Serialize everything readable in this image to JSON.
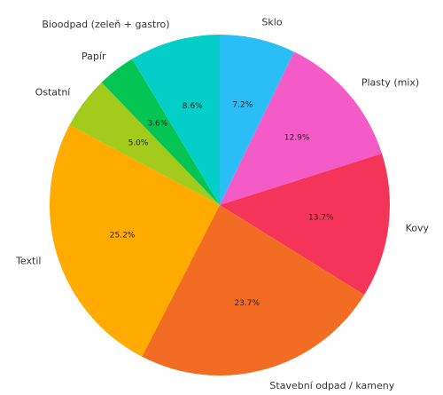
{
  "chart_data": {
    "type": "pie",
    "start_angle_deg": 90,
    "direction": "clockwise",
    "slices": [
      {
        "label": "Sklo",
        "value": 7.2,
        "pct_label": "7.2%",
        "color": "#2BBDF5"
      },
      {
        "label": "Plasty (mix)",
        "value": 12.9,
        "pct_label": "12.9%",
        "color": "#F55BC6"
      },
      {
        "label": "Kovy",
        "value": 13.7,
        "pct_label": "13.7%",
        "color": "#F5345A"
      },
      {
        "label": "Stavební odpad / kameny",
        "value": 23.7,
        "pct_label": "23.7%",
        "color": "#F36C24"
      },
      {
        "label": "Textil",
        "value": 25.2,
        "pct_label": "25.2%",
        "color": "#FFAB00"
      },
      {
        "label": "Ostatní",
        "value": 5.0,
        "pct_label": "5.0%",
        "color": "#A2CB1C"
      },
      {
        "label": "Papír",
        "value": 3.6,
        "pct_label": "3.6%",
        "color": "#04C454"
      },
      {
        "label": "Bioodpad (zeleň + gastro)",
        "value": 8.6,
        "pct_label": "8.6%",
        "color": "#03CFC8"
      }
    ]
  }
}
